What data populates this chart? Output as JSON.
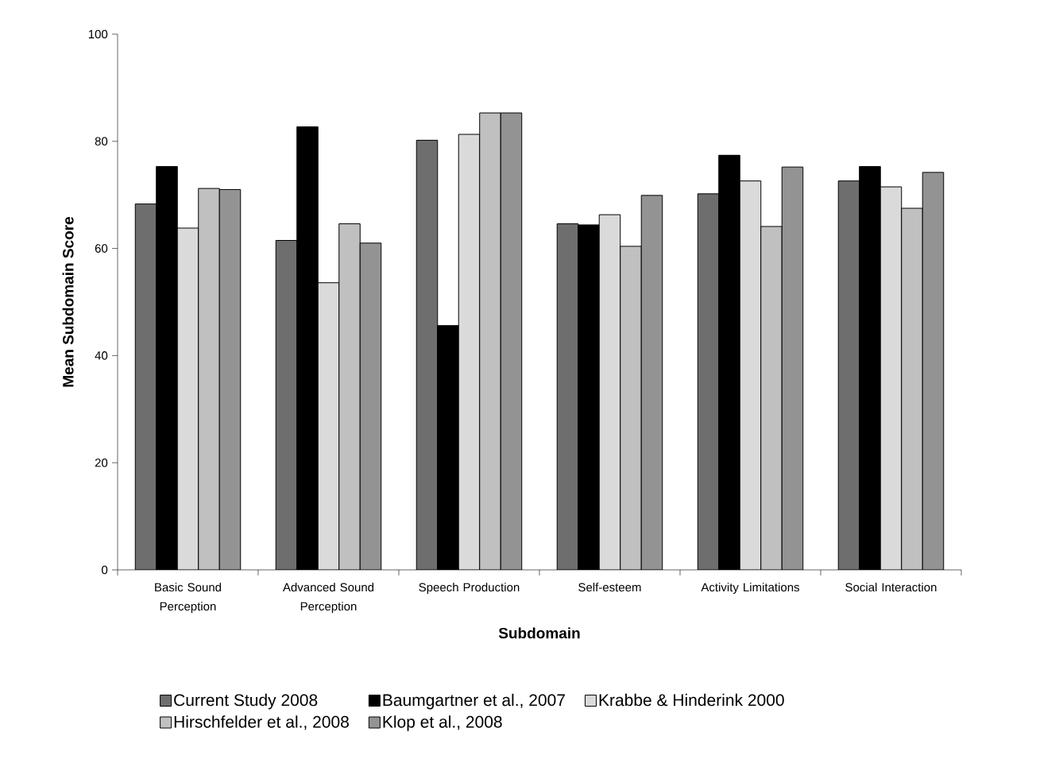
{
  "chart_data": {
    "type": "bar",
    "xlabel": "Subdomain",
    "ylabel": "Mean Subdomain Score",
    "categories": [
      "Basic Sound Perception",
      "Advanced Sound Perception",
      "Speech Production",
      "Self-esteem",
      "Activity Limitations",
      "Social Interaction"
    ],
    "series": [
      {
        "name": "Current Study 2008",
        "color": "#6e6e6e",
        "values": [
          68.3,
          61.5,
          80.2,
          64.6,
          70.2,
          72.6
        ]
      },
      {
        "name": "Baumgartner et al., 2007",
        "color": "#000000",
        "values": [
          75.3,
          82.7,
          45.6,
          64.4,
          77.4,
          75.3
        ]
      },
      {
        "name": "Krabbe & Hinderink 2000",
        "color": "#dadada",
        "values": [
          63.8,
          53.6,
          81.3,
          66.3,
          72.6,
          71.5
        ]
      },
      {
        "name": "Hirschfelder et al., 2008",
        "color": "#c0c0c0",
        "values": [
          71.2,
          64.6,
          85.3,
          60.4,
          64.1,
          67.5
        ]
      },
      {
        "name": "Klop et al., 2008",
        "color": "#939393",
        "values": [
          71.0,
          61.0,
          85.3,
          69.9,
          75.2,
          74.2
        ]
      }
    ],
    "ylim": [
      0,
      100
    ],
    "yticks": [
      0,
      20,
      40,
      60,
      80,
      100
    ],
    "grid": false,
    "legend": "bottom"
  }
}
